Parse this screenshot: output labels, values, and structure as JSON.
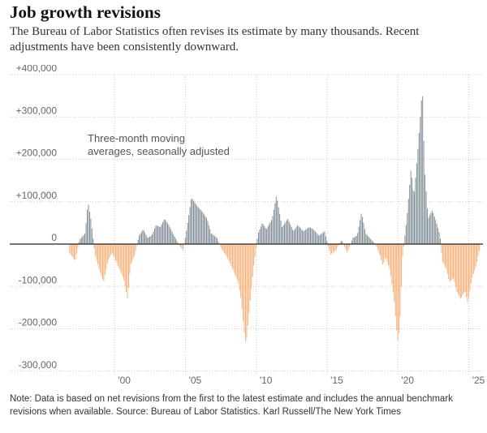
{
  "title": "Job growth revisions",
  "subtitle": "The Bureau of Labor Statistics often revises its estimate by many thousands. Recent adjustments have been consistently downward.",
  "note": "Note: Data is based on net revisions from the first to the latest estimate and includes the annual benchmark revisions when available.  Source: Bureau of Labor Statistics.  Karl Russell/The New York Times",
  "chart_data": {
    "type": "bar",
    "annotation": "Three-month moving averages, seasonally adjusted",
    "xlim": [
      1996.5,
      2026.0
    ],
    "ylim": [
      -310000,
      400000
    ],
    "grid": true,
    "colors": {
      "positive": "#7d8b94",
      "negative": "#f6ad72",
      "zero_line": "#222222",
      "grid": "#cccccc",
      "tick_text": "#666666"
    },
    "y_ticks": [
      {
        "value": 400000,
        "label": "+400,000"
      },
      {
        "value": 300000,
        "label": "+300,000"
      },
      {
        "value": 200000,
        "label": "+200,000"
      },
      {
        "value": 100000,
        "label": "+100,000"
      },
      {
        "value": 0,
        "label": "0"
      },
      {
        "value": -100000,
        "label": "-100,000"
      },
      {
        "value": -200000,
        "label": "-200,000"
      },
      {
        "value": -300000,
        "label": "-300,000"
      }
    ],
    "x_ticks": [
      {
        "value": 2000,
        "label": "'00"
      },
      {
        "value": 2005,
        "label": "'05"
      },
      {
        "value": 2010,
        "label": "'10"
      },
      {
        "value": 2015,
        "label": "'15"
      },
      {
        "value": 2020,
        "label": "'20"
      },
      {
        "value": 2025,
        "label": "'25"
      }
    ],
    "series_points": [
      [
        1996.8,
        -20000
      ],
      [
        1997.2,
        -40000
      ],
      [
        1997.5,
        10000
      ],
      [
        1997.9,
        25000
      ],
      [
        1998.1,
        100000
      ],
      [
        1998.3,
        60000
      ],
      [
        1998.6,
        -25000
      ],
      [
        1998.9,
        -60000
      ],
      [
        1999.2,
        -90000
      ],
      [
        1999.5,
        -40000
      ],
      [
        1999.8,
        -20000
      ],
      [
        2000.2,
        -50000
      ],
      [
        2000.6,
        -80000
      ],
      [
        2000.9,
        -130000
      ],
      [
        2001.1,
        -50000
      ],
      [
        2001.4,
        -25000
      ],
      [
        2001.7,
        20000
      ],
      [
        2002.0,
        35000
      ],
      [
        2002.3,
        15000
      ],
      [
        2002.6,
        20000
      ],
      [
        2002.9,
        45000
      ],
      [
        2003.2,
        40000
      ],
      [
        2003.5,
        60000
      ],
      [
        2003.8,
        45000
      ],
      [
        2004.1,
        25000
      ],
      [
        2004.5,
        0
      ],
      [
        2004.8,
        -15000
      ],
      [
        2005.0,
        20000
      ],
      [
        2005.4,
        110000
      ],
      [
        2005.8,
        90000
      ],
      [
        2006.2,
        75000
      ],
      [
        2006.5,
        60000
      ],
      [
        2006.8,
        25000
      ],
      [
        2007.2,
        15000
      ],
      [
        2007.5,
        -10000
      ],
      [
        2007.9,
        -30000
      ],
      [
        2008.2,
        -50000
      ],
      [
        2008.4,
        -65000
      ],
      [
        2008.7,
        -90000
      ],
      [
        2008.9,
        -130000
      ],
      [
        2009.1,
        -200000
      ],
      [
        2009.25,
        -240000
      ],
      [
        2009.5,
        -150000
      ],
      [
        2009.8,
        -50000
      ],
      [
        2010.1,
        25000
      ],
      [
        2010.4,
        50000
      ],
      [
        2010.7,
        35000
      ],
      [
        2011.1,
        60000
      ],
      [
        2011.4,
        115000
      ],
      [
        2011.8,
        40000
      ],
      [
        2012.2,
        60000
      ],
      [
        2012.6,
        30000
      ],
      [
        2012.9,
        45000
      ],
      [
        2013.3,
        30000
      ],
      [
        2013.7,
        40000
      ],
      [
        2014.0,
        35000
      ],
      [
        2014.4,
        20000
      ],
      [
        2014.8,
        30000
      ],
      [
        2015.2,
        -25000
      ],
      [
        2015.6,
        -15000
      ],
      [
        2016.0,
        10000
      ],
      [
        2016.4,
        -20000
      ],
      [
        2016.8,
        15000
      ],
      [
        2017.1,
        20000
      ],
      [
        2017.4,
        75000
      ],
      [
        2017.7,
        25000
      ],
      [
        2018.1,
        10000
      ],
      [
        2018.4,
        0
      ],
      [
        2018.7,
        -25000
      ],
      [
        2018.9,
        -50000
      ],
      [
        2019.1,
        -30000
      ],
      [
        2019.4,
        -60000
      ],
      [
        2019.7,
        -130000
      ],
      [
        2019.95,
        -230000
      ],
      [
        2020.1,
        -200000
      ],
      [
        2020.3,
        -30000
      ],
      [
        2020.6,
        60000
      ],
      [
        2020.9,
        180000
      ],
      [
        2021.1,
        110000
      ],
      [
        2021.35,
        210000
      ],
      [
        2021.55,
        300000
      ],
      [
        2021.7,
        370000
      ],
      [
        2021.85,
        180000
      ],
      [
        2022.1,
        60000
      ],
      [
        2022.4,
        80000
      ],
      [
        2022.7,
        50000
      ],
      [
        2022.95,
        20000
      ],
      [
        2023.1,
        -40000
      ],
      [
        2023.4,
        -60000
      ],
      [
        2023.6,
        -90000
      ],
      [
        2023.9,
        -80000
      ],
      [
        2024.1,
        -110000
      ],
      [
        2024.4,
        -130000
      ],
      [
        2024.7,
        -110000
      ],
      [
        2024.9,
        -140000
      ],
      [
        2025.2,
        -80000
      ],
      [
        2025.5,
        -50000
      ],
      [
        2025.75,
        -10000
      ]
    ]
  }
}
